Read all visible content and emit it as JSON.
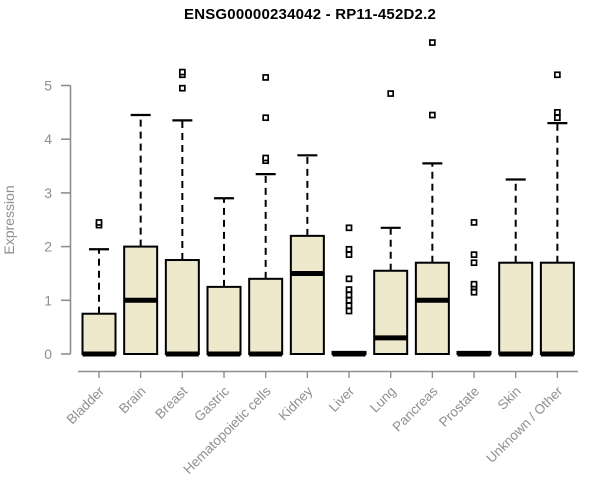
{
  "title": "ENSG00000234042 - RP11-452D2.2",
  "colors": {
    "box_fill": "#EEE8CD",
    "box_stroke": "#000000",
    "median": "#000000",
    "axis_line": "#8F8F8F",
    "axis_text": "#8F8F8F",
    "title_text": "#000000",
    "background": "#FFFFFF",
    "outlier_stroke": "#000000",
    "outlier_fill": "#FFFFFF"
  },
  "chart_data": {
    "type": "boxplot",
    "title": "ENSG00000234042 - RP11-452D2.2",
    "xlabel": "",
    "ylabel": "Expression",
    "ylim": [
      0,
      5.95
    ],
    "y_ticks": [
      0,
      1,
      2,
      3,
      4,
      5
    ],
    "grid": false,
    "legend": "none",
    "categories": [
      "Bladder",
      "Brain",
      "Breast",
      "Gastric",
      "Hematopoietic cells",
      "Kidney",
      "Liver",
      "Lung",
      "Pancreas",
      "Prostate",
      "Skin",
      "Unknown / Other"
    ],
    "boxes": [
      {
        "label": "Bladder",
        "q1": 0,
        "median": 0,
        "q3": 0.75,
        "whisker_low": 0,
        "whisker_high": 1.95,
        "outliers": [
          2.4,
          2.45
        ]
      },
      {
        "label": "Brain",
        "q1": 0,
        "median": 1.0,
        "q3": 2.0,
        "whisker_low": 0,
        "whisker_high": 4.45,
        "outliers": []
      },
      {
        "label": "Breast",
        "q1": 0,
        "median": 0,
        "q3": 1.75,
        "whisker_low": 0,
        "whisker_high": 4.35,
        "outliers": [
          4.95,
          5.2,
          5.25
        ]
      },
      {
        "label": "Gastric",
        "q1": 0,
        "median": 0,
        "q3": 1.25,
        "whisker_low": 0,
        "whisker_high": 2.9,
        "outliers": []
      },
      {
        "label": "Hematopoietic cells",
        "q1": 0,
        "median": 0,
        "q3": 1.4,
        "whisker_low": 0,
        "whisker_high": 3.35,
        "outliers": [
          3.6,
          3.65,
          4.4,
          5.15
        ]
      },
      {
        "label": "Kidney",
        "q1": 0,
        "median": 1.5,
        "q3": 2.2,
        "whisker_low": 0,
        "whisker_high": 3.7,
        "outliers": []
      },
      {
        "label": "Liver",
        "q1": 0,
        "median": 0,
        "q3": 0.04,
        "whisker_low": 0,
        "whisker_high": 0.04,
        "outliers": [
          0.8,
          0.9,
          1.0,
          1.1,
          1.2,
          1.4,
          1.85,
          1.95,
          2.35
        ]
      },
      {
        "label": "Lung",
        "q1": 0,
        "median": 0.3,
        "q3": 1.55,
        "whisker_low": 0,
        "whisker_high": 2.35,
        "outliers": [
          4.85
        ]
      },
      {
        "label": "Pancreas",
        "q1": 0,
        "median": 1.0,
        "q3": 1.7,
        "whisker_low": 0,
        "whisker_high": 3.55,
        "outliers": [
          4.45,
          5.8
        ]
      },
      {
        "label": "Prostate",
        "q1": 0,
        "median": 0,
        "q3": 0.04,
        "whisker_low": 0,
        "whisker_high": 0.04,
        "outliers": [
          1.15,
          1.25,
          1.3,
          1.7,
          1.85,
          2.45
        ]
      },
      {
        "label": "Skin",
        "q1": 0,
        "median": 0,
        "q3": 1.7,
        "whisker_low": 0,
        "whisker_high": 3.25,
        "outliers": []
      },
      {
        "label": "Unknown / Other",
        "q1": 0,
        "median": 0,
        "q3": 1.7,
        "whisker_low": 0,
        "whisker_high": 4.3,
        "outliers": [
          4.4,
          4.5,
          5.2
        ]
      }
    ]
  }
}
